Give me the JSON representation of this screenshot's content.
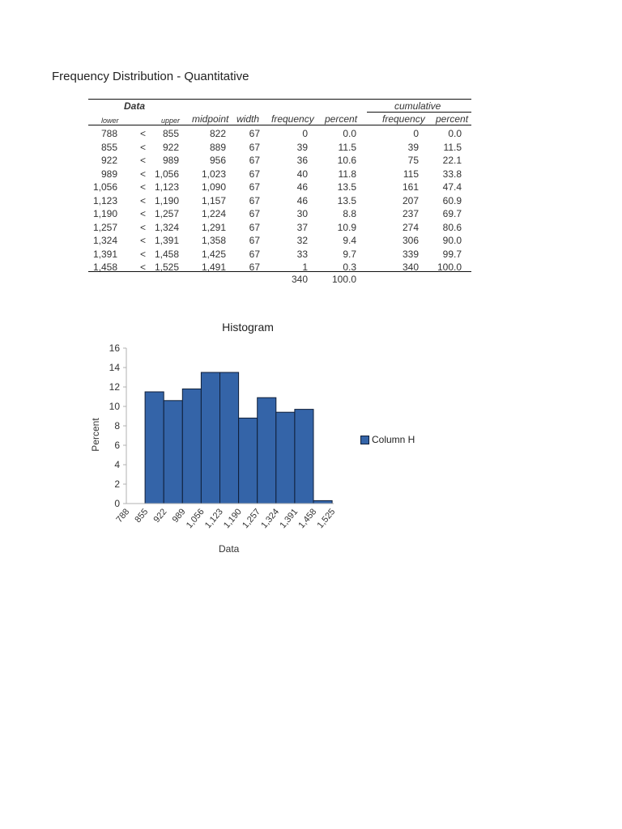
{
  "page": {
    "title": "Frequency Distribution - Quantitative"
  },
  "table": {
    "group_headers": {
      "data": "Data",
      "cumulative": "cumulative"
    },
    "columns": {
      "lower": "lower",
      "upper": "upper",
      "midpoint": "midpoint",
      "width": "width",
      "frequency": "frequency",
      "percent": "percent",
      "cum_frequency": "frequency",
      "cum_percent": "percent"
    },
    "rows": [
      {
        "lower": "788",
        "lt": "<",
        "upper": "855",
        "midpoint": "822",
        "width": "67",
        "frequency": "0",
        "percent": "0.0",
        "cum_frequency": "0",
        "cum_percent": "0.0"
      },
      {
        "lower": "855",
        "lt": "<",
        "upper": "922",
        "midpoint": "889",
        "width": "67",
        "frequency": "39",
        "percent": "11.5",
        "cum_frequency": "39",
        "cum_percent": "11.5"
      },
      {
        "lower": "922",
        "lt": "<",
        "upper": "989",
        "midpoint": "956",
        "width": "67",
        "frequency": "36",
        "percent": "10.6",
        "cum_frequency": "75",
        "cum_percent": "22.1"
      },
      {
        "lower": "989",
        "lt": "<",
        "upper": "1,056",
        "midpoint": "1,023",
        "width": "67",
        "frequency": "40",
        "percent": "11.8",
        "cum_frequency": "115",
        "cum_percent": "33.8"
      },
      {
        "lower": "1,056",
        "lt": "<",
        "upper": "1,123",
        "midpoint": "1,090",
        "width": "67",
        "frequency": "46",
        "percent": "13.5",
        "cum_frequency": "161",
        "cum_percent": "47.4"
      },
      {
        "lower": "1,123",
        "lt": "<",
        "upper": "1,190",
        "midpoint": "1,157",
        "width": "67",
        "frequency": "46",
        "percent": "13.5",
        "cum_frequency": "207",
        "cum_percent": "60.9"
      },
      {
        "lower": "1,190",
        "lt": "<",
        "upper": "1,257",
        "midpoint": "1,224",
        "width": "67",
        "frequency": "30",
        "percent": "8.8",
        "cum_frequency": "237",
        "cum_percent": "69.7"
      },
      {
        "lower": "1,257",
        "lt": "<",
        "upper": "1,324",
        "midpoint": "1,291",
        "width": "67",
        "frequency": "37",
        "percent": "10.9",
        "cum_frequency": "274",
        "cum_percent": "80.6"
      },
      {
        "lower": "1,324",
        "lt": "<",
        "upper": "1,391",
        "midpoint": "1,358",
        "width": "67",
        "frequency": "32",
        "percent": "9.4",
        "cum_frequency": "306",
        "cum_percent": "90.0"
      },
      {
        "lower": "1,391",
        "lt": "<",
        "upper": "1,458",
        "midpoint": "1,425",
        "width": "67",
        "frequency": "33",
        "percent": "9.7",
        "cum_frequency": "339",
        "cum_percent": "99.7"
      },
      {
        "lower": "1,458",
        "lt": "<",
        "upper": "1,525",
        "midpoint": "1,491",
        "width": "67",
        "frequency": "1",
        "percent": "0.3",
        "cum_frequency": "340",
        "cum_percent": "100.0"
      }
    ],
    "totals": {
      "frequency": "340",
      "percent": "100.0"
    }
  },
  "colors": {
    "bar_fill": "#3464a8",
    "bar_stroke": "#0f1e38",
    "axis": "#b0b0b0",
    "text": "#333333"
  },
  "chart_data": {
    "type": "bar",
    "title": "Histogram",
    "xlabel": "Data",
    "ylabel": "Percent",
    "legend": [
      "Column H"
    ],
    "legend_position": "right",
    "grid": false,
    "ylim": [
      0,
      16
    ],
    "yticks": [
      0,
      2,
      4,
      6,
      8,
      10,
      12,
      14,
      16
    ],
    "xtick_labels": [
      "788",
      "855",
      "922",
      "989",
      "1,056",
      "1,123",
      "1,190",
      "1,257",
      "1,324",
      "1,391",
      "1,458",
      "1,525"
    ],
    "bins": [
      {
        "lower": 788,
        "upper": 855,
        "percent": 0.0
      },
      {
        "lower": 855,
        "upper": 922,
        "percent": 11.5
      },
      {
        "lower": 922,
        "upper": 989,
        "percent": 10.6
      },
      {
        "lower": 989,
        "upper": 1056,
        "percent": 11.8
      },
      {
        "lower": 1056,
        "upper": 1123,
        "percent": 13.5
      },
      {
        "lower": 1123,
        "upper": 1190,
        "percent": 13.5
      },
      {
        "lower": 1190,
        "upper": 1257,
        "percent": 8.8
      },
      {
        "lower": 1257,
        "upper": 1324,
        "percent": 10.9
      },
      {
        "lower": 1324,
        "upper": 1391,
        "percent": 9.4
      },
      {
        "lower": 1391,
        "upper": 1458,
        "percent": 9.7
      },
      {
        "lower": 1458,
        "upper": 1525,
        "percent": 0.3
      }
    ],
    "categories": [
      "788-855",
      "855-922",
      "922-989",
      "989-1,056",
      "1,056-1,123",
      "1,123-1,190",
      "1,190-1,257",
      "1,257-1,324",
      "1,324-1,391",
      "1,391-1,458",
      "1,458-1,525"
    ],
    "series": [
      {
        "name": "Column H",
        "values": [
          0.0,
          11.5,
          10.6,
          11.8,
          13.5,
          13.5,
          8.8,
          10.9,
          9.4,
          9.7,
          0.3
        ]
      }
    ]
  }
}
